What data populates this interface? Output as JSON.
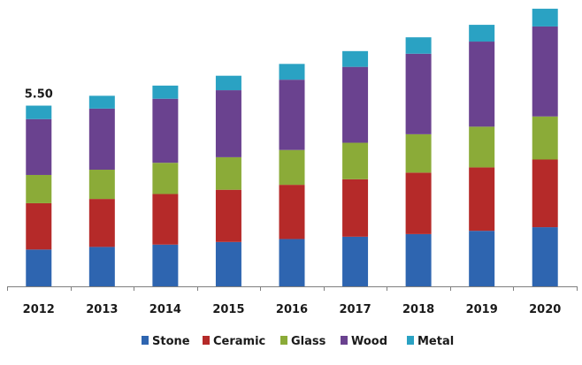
{
  "chart_data": {
    "type": "bar",
    "stacked": true,
    "title": "",
    "xlabel": "",
    "ylabel": "",
    "categories": [
      "2012",
      "2013",
      "2014",
      "2015",
      "2016",
      "2017",
      "2018",
      "2019",
      "2020"
    ],
    "ylim": [
      0,
      8.5
    ],
    "grid": false,
    "legend_position": "bottom",
    "series": [
      {
        "name": "Stone",
        "color": "#2e65b0",
        "values": [
          1.12,
          1.2,
          1.27,
          1.35,
          1.44,
          1.51,
          1.59,
          1.69,
          1.8
        ]
      },
      {
        "name": "Ceramic",
        "color": "#b52a29",
        "values": [
          1.41,
          1.46,
          1.54,
          1.59,
          1.65,
          1.75,
          1.87,
          1.93,
          2.06
        ]
      },
      {
        "name": "Glass",
        "color": "#8bab38",
        "values": [
          0.86,
          0.89,
          0.95,
          0.99,
          1.06,
          1.11,
          1.17,
          1.24,
          1.31
        ]
      },
      {
        "name": "Wood",
        "color": "#6a428f",
        "values": [
          1.7,
          1.86,
          1.95,
          2.04,
          2.14,
          2.31,
          2.45,
          2.59,
          2.74
        ]
      },
      {
        "name": "Metal",
        "color": "#2aa2c3",
        "values": [
          0.41,
          0.39,
          0.4,
          0.44,
          0.48,
          0.48,
          0.5,
          0.51,
          0.54
        ]
      }
    ],
    "data_labels": [
      {
        "category": "2012",
        "text": "5.50"
      }
    ]
  }
}
